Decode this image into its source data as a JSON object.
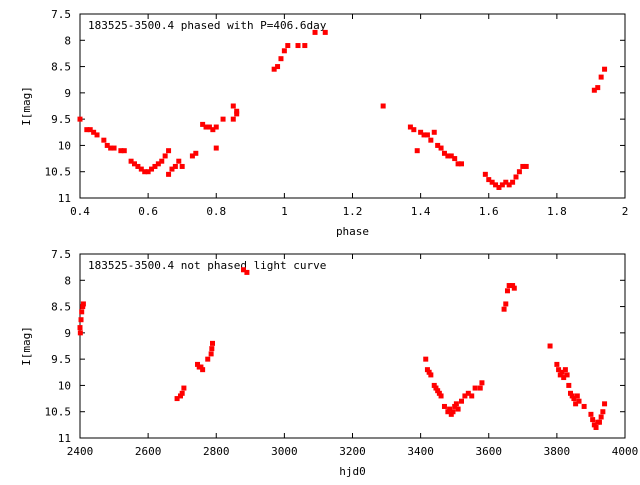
{
  "chart_data": [
    {
      "type": "scatter",
      "title": "183525-3500.4 phased with P=406.6day",
      "xlabel": "phase",
      "ylabel": "I[mag]",
      "xlim": [
        0.4,
        2.0
      ],
      "ylim": [
        7.5,
        11.0
      ],
      "y_inverted": true,
      "xticks": [
        0.4,
        0.6,
        0.8,
        1.0,
        1.2,
        1.4,
        1.6,
        1.8,
        2.0
      ],
      "xtick_labels": [
        "0.4",
        "0.6",
        "0.8",
        "1",
        "1.2",
        "1.4",
        "1.6",
        "1.8",
        "2"
      ],
      "yticks": [
        7.5,
        8.0,
        8.5,
        9.0,
        9.5,
        10.0,
        10.5,
        11.0
      ],
      "ytick_labels": [
        "7.5",
        "8",
        "8.5",
        "9",
        "9.5",
        "10",
        "10.5",
        "11"
      ],
      "grid": false,
      "marker_color": "#ff0000",
      "series": [
        {
          "x": [
            0.4,
            0.42,
            0.43,
            0.44,
            0.45,
            0.47,
            0.48,
            0.49,
            0.5,
            0.52,
            0.53,
            0.55,
            0.56,
            0.57,
            0.58,
            0.59,
            0.6,
            0.61,
            0.62,
            0.63,
            0.64,
            0.65,
            0.66,
            0.66,
            0.67,
            0.68,
            0.69,
            0.7,
            0.73,
            0.74,
            0.76,
            0.77,
            0.78,
            0.79,
            0.8,
            0.8,
            0.82,
            0.85,
            0.85,
            0.86,
            0.86,
            0.97,
            0.98,
            0.99,
            1.0,
            1.01,
            1.04,
            1.06,
            1.09,
            1.12,
            1.29,
            1.37,
            1.38,
            1.39,
            1.4,
            1.41,
            1.42,
            1.43,
            1.44,
            1.45,
            1.46,
            1.47,
            1.48,
            1.49,
            1.5,
            1.51,
            1.52,
            1.59,
            1.6,
            1.61,
            1.62,
            1.63,
            1.64,
            1.65,
            1.66,
            1.67,
            1.68,
            1.69,
            1.7,
            1.71,
            1.91,
            1.92,
            1.93,
            1.94
          ],
          "y": [
            9.5,
            9.7,
            9.7,
            9.75,
            9.8,
            9.9,
            10.0,
            10.05,
            10.05,
            10.1,
            10.1,
            10.3,
            10.35,
            10.4,
            10.45,
            10.5,
            10.5,
            10.45,
            10.4,
            10.35,
            10.3,
            10.2,
            10.1,
            10.55,
            10.45,
            10.4,
            10.3,
            10.4,
            10.2,
            10.15,
            9.6,
            9.65,
            9.65,
            9.7,
            9.65,
            10.05,
            9.5,
            9.25,
            9.5,
            9.35,
            9.4,
            8.55,
            8.5,
            8.35,
            8.2,
            8.1,
            8.1,
            8.1,
            7.85,
            7.85,
            9.25,
            9.65,
            9.7,
            10.1,
            9.75,
            9.8,
            9.8,
            9.9,
            9.75,
            10.0,
            10.05,
            10.15,
            10.2,
            10.2,
            10.25,
            10.35,
            10.35,
            10.55,
            10.65,
            10.7,
            10.75,
            10.8,
            10.75,
            10.7,
            10.75,
            10.7,
            10.6,
            10.5,
            10.4,
            10.4,
            8.95,
            8.9,
            8.7,
            8.55
          ]
        }
      ]
    },
    {
      "type": "scatter",
      "title": "183525-3500.4 not phased light curve",
      "xlabel": "hjd0",
      "ylabel": "I[mag]",
      "xlim": [
        2400,
        4000
      ],
      "ylim": [
        7.5,
        11.0
      ],
      "y_inverted": true,
      "xticks": [
        2400,
        2600,
        2800,
        3000,
        3200,
        3400,
        3600,
        3800,
        4000
      ],
      "xtick_labels": [
        "2400",
        "2600",
        "2800",
        "3000",
        "3200",
        "3400",
        "3600",
        "3800",
        "4000"
      ],
      "yticks": [
        7.5,
        8.0,
        8.5,
        9.0,
        9.5,
        10.0,
        10.5,
        11.0
      ],
      "ytick_labels": [
        "7.5",
        "8",
        "8.5",
        "9",
        "9.5",
        "10",
        "10.5",
        "11"
      ],
      "grid": false,
      "marker_color": "#ff0000",
      "series": [
        {
          "x": [
            2400,
            2401,
            2403,
            2405,
            2408,
            2410,
            2685,
            2695,
            2700,
            2705,
            2745,
            2750,
            2755,
            2760,
            2775,
            2785,
            2787,
            2789,
            2880,
            2890,
            3415,
            3420,
            3425,
            3430,
            3440,
            3445,
            3450,
            3455,
            3460,
            3470,
            3480,
            3485,
            3490,
            3495,
            3500,
            3505,
            3510,
            3520,
            3530,
            3540,
            3550,
            3560,
            3575,
            3580,
            3645,
            3650,
            3655,
            3660,
            3670,
            3675,
            3780,
            3800,
            3805,
            3810,
            3815,
            3820,
            3825,
            3830,
            3835,
            3840,
            3845,
            3850,
            3855,
            3860,
            3865,
            3880,
            3900,
            3905,
            3910,
            3915,
            3920,
            3925,
            3930,
            3935,
            3940
          ],
          "y": [
            8.9,
            9.0,
            8.75,
            8.6,
            8.5,
            8.45,
            10.25,
            10.2,
            10.15,
            10.05,
            9.6,
            9.65,
            9.65,
            9.7,
            9.5,
            9.4,
            9.3,
            9.2,
            7.8,
            7.85,
            9.5,
            9.7,
            9.75,
            9.8,
            10.0,
            10.05,
            10.1,
            10.15,
            10.2,
            10.4,
            10.5,
            10.45,
            10.55,
            10.5,
            10.4,
            10.35,
            10.45,
            10.3,
            10.2,
            10.15,
            10.2,
            10.05,
            10.05,
            9.95,
            8.55,
            8.45,
            8.2,
            8.1,
            8.1,
            8.15,
            9.25,
            9.6,
            9.7,
            9.8,
            9.75,
            9.85,
            9.7,
            9.8,
            10.0,
            10.15,
            10.2,
            10.25,
            10.35,
            10.2,
            10.3,
            10.4,
            10.55,
            10.65,
            10.75,
            10.8,
            10.7,
            10.7,
            10.6,
            10.5,
            10.35
          ]
        }
      ]
    }
  ]
}
